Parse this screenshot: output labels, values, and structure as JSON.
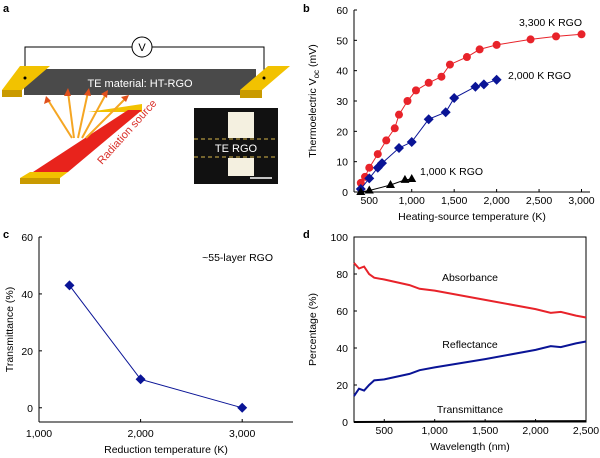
{
  "panel_a": {
    "label": "a",
    "voltmeter": "V",
    "te_material": "TE material: HT-RGO",
    "radiation_source": "Radiation source",
    "inset_label": "TE RGO",
    "colors": {
      "electrode": "#f2c200",
      "te_bar": "#4a4a4a",
      "radiation": "#e8231c",
      "arrows": "#f5a623"
    }
  },
  "chart_data": [
    {
      "panel": "b",
      "type": "line",
      "xlabel": "Heating-source temperature (K)",
      "ylabel": "Thermoelectric V",
      "ylabel_sub": "oc",
      "ylabel_unit": " (mV)",
      "xlim": [
        320,
        3100
      ],
      "ylim": [
        0,
        60
      ],
      "xticks": [
        500,
        1000,
        1500,
        2000,
        2500,
        3000
      ],
      "xtick_labels": [
        "500",
        "1,000",
        "1,500",
        "2,000",
        "2,500",
        "3,000"
      ],
      "yticks": [
        0,
        10,
        20,
        30,
        40,
        50,
        60
      ],
      "grid": false,
      "series": [
        {
          "name": "3,300 K RGO",
          "color": "#e8232a",
          "marker": "circle",
          "x": [
            400,
            450,
            500,
            600,
            700,
            800,
            850,
            950,
            1050,
            1200,
            1350,
            1450,
            1650,
            1800,
            2000,
            2400,
            2700,
            3000
          ],
          "y": [
            3,
            5,
            8,
            12.5,
            17,
            21,
            25.5,
            30,
            33.5,
            36,
            38,
            42,
            44.5,
            47,
            48.5,
            50.3,
            51.3,
            52
          ]
        },
        {
          "name": "2,000 K RGO",
          "color": "#0a1496",
          "marker": "diamond",
          "x": [
            400,
            500,
            600,
            650,
            850,
            1000,
            1200,
            1400,
            1500,
            1750,
            1850,
            2000
          ],
          "y": [
            1,
            4.5,
            8,
            9.5,
            14.5,
            16.5,
            24,
            26.3,
            31,
            34.7,
            35.5,
            37
          ]
        },
        {
          "name": "1,000 K RGO",
          "color": "#000000",
          "marker": "triangle",
          "x": [
            400,
            500,
            750,
            920,
            1000
          ],
          "y": [
            0,
            0.5,
            2.3,
            4,
            4.3
          ]
        }
      ]
    },
    {
      "panel": "c",
      "type": "line",
      "xlabel": "Reduction temperature (K)",
      "ylabel": "Transmittance (%)",
      "annotation": "~55-layer RGO",
      "xlim": [
        1000,
        3500
      ],
      "ylim": [
        -5,
        60
      ],
      "xticks": [
        1000,
        2000,
        3000
      ],
      "xtick_labels": [
        "1,000",
        "2,000",
        "3,000"
      ],
      "yticks": [
        0,
        20,
        40,
        60
      ],
      "grid": false,
      "series": [
        {
          "color": "#0a1496",
          "marker": "diamond",
          "x": [
            1300,
            2000,
            3000
          ],
          "y": [
            43,
            10,
            0
          ]
        }
      ]
    },
    {
      "panel": "d",
      "type": "line",
      "xlabel": "Wavelength (nm)",
      "ylabel": "Percentage (%)",
      "xlim": [
        200,
        2500
      ],
      "ylim": [
        0,
        100
      ],
      "xticks": [
        500,
        1000,
        1500,
        2000,
        2500
      ],
      "xtick_labels": [
        "500",
        "1,000",
        "1,500",
        "2,000",
        "2,500"
      ],
      "yticks": [
        0,
        20,
        40,
        60,
        80,
        100
      ],
      "grid": false,
      "series": [
        {
          "name": "Absorbance",
          "color": "#e8232a",
          "x": [
            200,
            250,
            300,
            350,
            400,
            500,
            750,
            850,
            1000,
            1500,
            2000,
            2150,
            2250,
            2400,
            2500
          ],
          "y": [
            86,
            83,
            84,
            80,
            78,
            77,
            74,
            72,
            71,
            66,
            61,
            59,
            59.5,
            57.5,
            56.5
          ]
        },
        {
          "name": "Reflectance",
          "color": "#0a1496",
          "x": [
            200,
            250,
            300,
            350,
            400,
            500,
            750,
            850,
            1000,
            1500,
            2000,
            2150,
            2250,
            2400,
            2500
          ],
          "y": [
            14,
            18,
            17,
            20,
            22.5,
            23,
            26,
            28,
            29.5,
            34,
            39,
            41,
            40.5,
            42.5,
            43.5
          ]
        },
        {
          "name": "Transmittance",
          "color": "#000000",
          "x": [
            200,
            1000,
            2000,
            2500
          ],
          "y": [
            0,
            0.2,
            0.4,
            0.5
          ]
        }
      ]
    }
  ]
}
